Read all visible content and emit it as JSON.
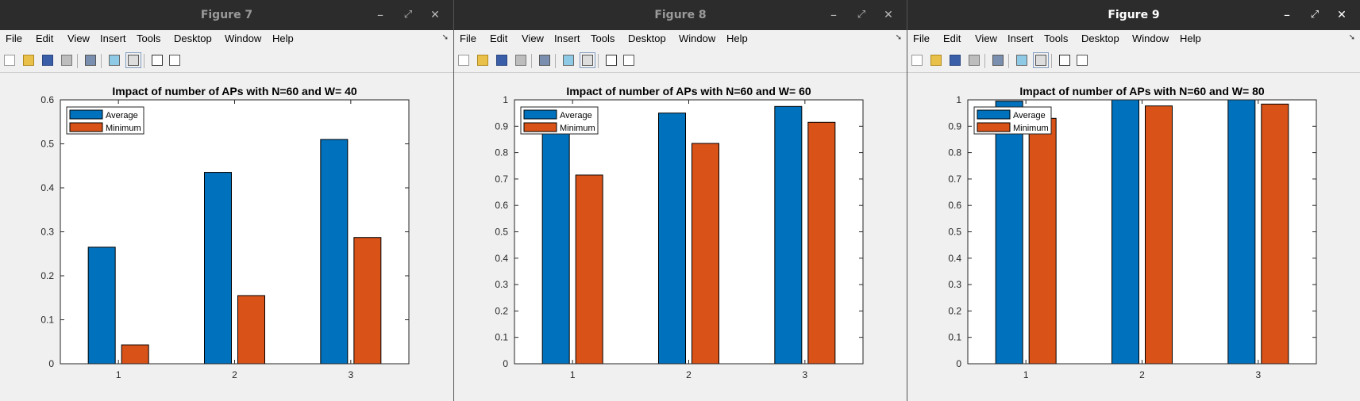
{
  "menus": [
    "File",
    "Edit",
    "View",
    "Insert",
    "Tools",
    "Desktop",
    "Window",
    "Help"
  ],
  "window_controls": {
    "minimize": "–",
    "maximize": "⤢",
    "close": "✕"
  },
  "colors": {
    "average": "#0072BD",
    "minimum": "#D95319"
  },
  "windows": [
    {
      "title": "Figure 7",
      "active": false
    },
    {
      "title": "Figure 8",
      "active": false
    },
    {
      "title": "Figure 9",
      "active": true
    }
  ],
  "chart_data": [
    {
      "type": "bar",
      "title": "Impact of number of APs with N=60 and W= 40",
      "categories": [
        "1",
        "2",
        "3"
      ],
      "ylim": [
        0,
        0.6
      ],
      "yticks": [
        "0",
        "0.1",
        "0.2",
        "0.3",
        "0.4",
        "0.5",
        "0.6"
      ],
      "legend": "top-left",
      "series": [
        {
          "name": "Average",
          "values": [
            0.265,
            0.435,
            0.51
          ]
        },
        {
          "name": "Minimum",
          "values": [
            0.043,
            0.155,
            0.287
          ]
        }
      ]
    },
    {
      "type": "bar",
      "title": "Impact of number of APs with N=60 and W= 60",
      "categories": [
        "1",
        "2",
        "3"
      ],
      "ylim": [
        0,
        1
      ],
      "yticks": [
        "0",
        "0.1",
        "0.2",
        "0.3",
        "0.4",
        "0.5",
        "0.6",
        "0.7",
        "0.8",
        "0.9",
        "1"
      ],
      "legend": "top-left",
      "series": [
        {
          "name": "Average",
          "values": [
            0.92,
            0.95,
            0.975
          ]
        },
        {
          "name": "Minimum",
          "values": [
            0.715,
            0.835,
            0.915
          ]
        }
      ]
    },
    {
      "type": "bar",
      "title": "Impact of number of APs with N=60 and W= 80",
      "categories": [
        "1",
        "2",
        "3"
      ],
      "ylim": [
        0,
        1
      ],
      "yticks": [
        "0",
        "0.1",
        "0.2",
        "0.3",
        "0.4",
        "0.5",
        "0.6",
        "0.7",
        "0.8",
        "0.9",
        "1"
      ],
      "legend": "top-left",
      "series": [
        {
          "name": "Average",
          "values": [
            0.995,
            1.0,
            1.0
          ]
        },
        {
          "name": "Minimum",
          "values": [
            0.93,
            0.977,
            0.984
          ]
        }
      ]
    }
  ]
}
